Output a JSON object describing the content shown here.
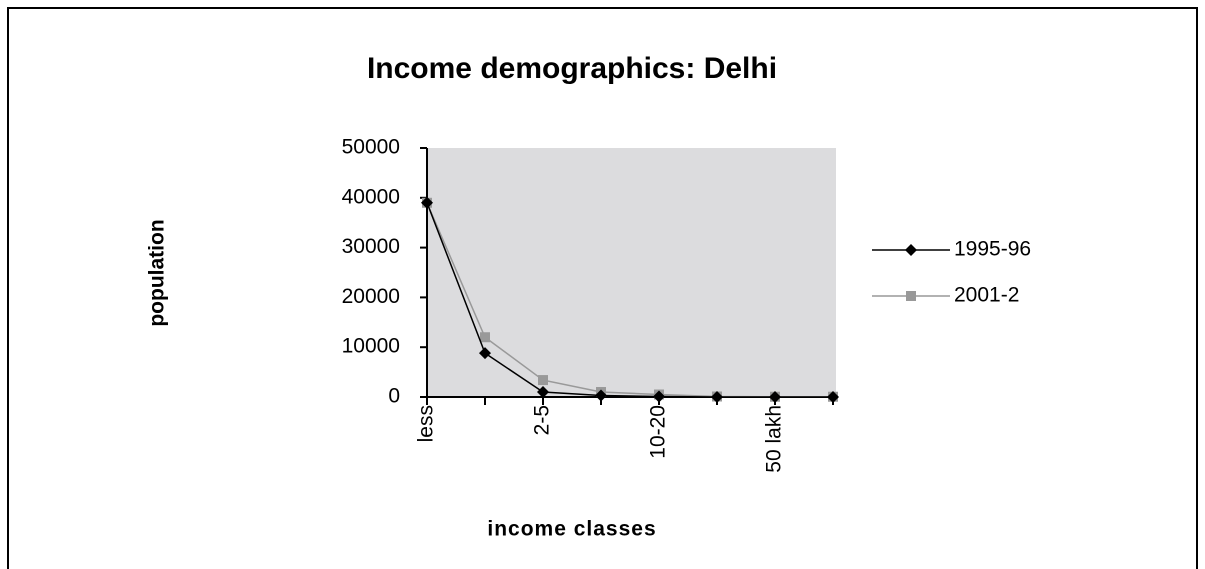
{
  "chart_data": {
    "type": "line",
    "title": "Income demographics: Delhi",
    "x_label": "income classes",
    "y_label": "population",
    "categories": [
      "less",
      null,
      "2-5",
      null,
      "10-20",
      null,
      "50 lakh",
      null
    ],
    "series": [
      {
        "name": "1995-96",
        "color": "#000000",
        "marker": "diamond",
        "values": [
          39000,
          8800,
          1000,
          300,
          100,
          0,
          0,
          0
        ]
      },
      {
        "name": "2001-2",
        "color": "#999999",
        "marker": "square",
        "values": [
          39000,
          12000,
          3400,
          1000,
          500,
          100,
          50,
          50
        ]
      }
    ],
    "ylim": [
      0,
      50000
    ],
    "yticks": [
      0,
      10000,
      20000,
      30000,
      40000,
      50000
    ],
    "plot_background": "#dcdcde",
    "legend": "right"
  }
}
